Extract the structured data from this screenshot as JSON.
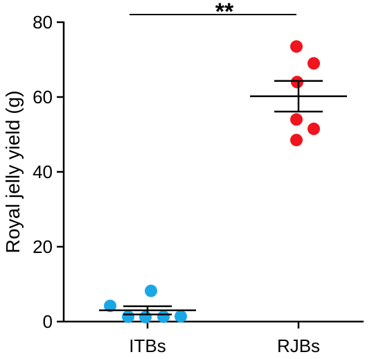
{
  "chart_data": {
    "type": "scatter",
    "ylabel": "Royal jelly yield (g)",
    "xlabel": "",
    "ylim": [
      0,
      80
    ],
    "yticks": [
      0,
      20,
      40,
      60,
      80
    ],
    "categories": [
      "ITBs",
      "RJBs"
    ],
    "series": [
      {
        "category": "ITBs",
        "color": "#1aa7e6",
        "values": [
          4.2,
          8.2,
          1.3,
          1.2,
          1.3,
          1.4
        ],
        "mean": 3.0,
        "sem": 1.1
      },
      {
        "category": "RJBs",
        "color": "#f0141e",
        "values": [
          73.5,
          69.0,
          64.0,
          54.0,
          51.5,
          48.5
        ],
        "mean": 60.2,
        "sem": 4.1
      }
    ],
    "annotations": [
      {
        "text": "**",
        "between": [
          "ITBs",
          "RJBs"
        ]
      }
    ]
  }
}
